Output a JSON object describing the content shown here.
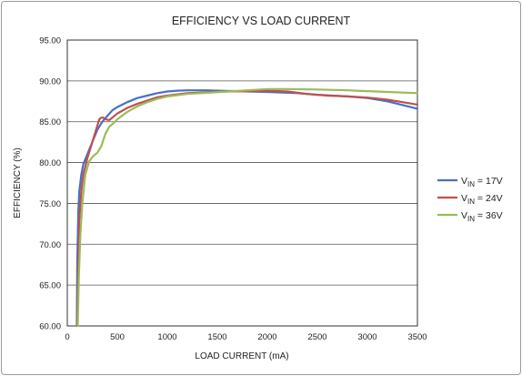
{
  "chart_data": {
    "type": "line",
    "title": "EFFICIENCY VS LOAD CURRENT",
    "xlabel": "LOAD CURRENT (mA)",
    "ylabel": "EFFICIENCY (%)",
    "xlim": [
      0,
      3500
    ],
    "ylim": [
      60,
      95
    ],
    "x_ticks": [
      0,
      500,
      1000,
      1500,
      2000,
      2500,
      3000,
      3500
    ],
    "x_tick_labels": [
      "0",
      "500",
      "1000",
      "1500",
      "2000",
      "2500",
      "3000",
      "3500"
    ],
    "y_ticks": [
      60,
      65,
      70,
      75,
      80,
      85,
      90,
      95
    ],
    "y_tick_labels": [
      "60.00",
      "65.00",
      "70.00",
      "75.00",
      "80.00",
      "85.00",
      "90.00",
      "95.00"
    ],
    "grid": "horizontal",
    "legend_position": "right",
    "series": [
      {
        "name_main": "V",
        "name_sub": "IN",
        "name_rest": " = 17V",
        "color": "#4472c4",
        "points": [
          [
            95,
            60
          ],
          [
            100,
            68
          ],
          [
            110,
            74
          ],
          [
            120,
            76.5
          ],
          [
            140,
            78.5
          ],
          [
            160,
            79.8
          ],
          [
            200,
            81
          ],
          [
            250,
            82.5
          ],
          [
            300,
            84
          ],
          [
            350,
            85
          ],
          [
            400,
            85.7
          ],
          [
            450,
            86.4
          ],
          [
            500,
            86.8
          ],
          [
            600,
            87.4
          ],
          [
            700,
            87.9
          ],
          [
            800,
            88.2
          ],
          [
            900,
            88.5
          ],
          [
            1000,
            88.7
          ],
          [
            1100,
            88.8
          ],
          [
            1200,
            88.85
          ],
          [
            1300,
            88.85
          ],
          [
            1400,
            88.85
          ],
          [
            1500,
            88.8
          ],
          [
            1700,
            88.75
          ],
          [
            2000,
            88.65
          ],
          [
            2300,
            88.5
          ],
          [
            2500,
            88.3
          ],
          [
            2800,
            88.1
          ],
          [
            3000,
            87.9
          ],
          [
            3200,
            87.5
          ],
          [
            3400,
            86.9
          ],
          [
            3500,
            86.6
          ]
        ]
      },
      {
        "name_main": "V",
        "name_sub": "IN",
        "name_rest": " = 24V",
        "color": "#c0504d",
        "points": [
          [
            100,
            60
          ],
          [
            110,
            68
          ],
          [
            120,
            73
          ],
          [
            140,
            76.5
          ],
          [
            160,
            78.5
          ],
          [
            200,
            80.5
          ],
          [
            250,
            82.5
          ],
          [
            300,
            84.5
          ],
          [
            320,
            85.3
          ],
          [
            340,
            85.5
          ],
          [
            360,
            85.5
          ],
          [
            380,
            85.3
          ],
          [
            420,
            85.2
          ],
          [
            460,
            85.6
          ],
          [
            500,
            86
          ],
          [
            600,
            86.7
          ],
          [
            700,
            87.2
          ],
          [
            800,
            87.6
          ],
          [
            900,
            88
          ],
          [
            1000,
            88.2
          ],
          [
            1200,
            88.5
          ],
          [
            1400,
            88.6
          ],
          [
            1600,
            88.7
          ],
          [
            1800,
            88.75
          ],
          [
            2000,
            88.8
          ],
          [
            2200,
            88.7
          ],
          [
            2400,
            88.4
          ],
          [
            2600,
            88.2
          ],
          [
            2800,
            88.1
          ],
          [
            3000,
            87.95
          ],
          [
            3200,
            87.7
          ],
          [
            3400,
            87.3
          ],
          [
            3500,
            87.1
          ]
        ]
      },
      {
        "name_main": "V",
        "name_sub": "IN",
        "name_rest": " = 36V",
        "color": "#9bbb59",
        "points": [
          [
            105,
            60
          ],
          [
            115,
            66
          ],
          [
            130,
            71
          ],
          [
            150,
            75
          ],
          [
            180,
            78.5
          ],
          [
            220,
            80.2
          ],
          [
            260,
            80.8
          ],
          [
            300,
            81.2
          ],
          [
            340,
            82
          ],
          [
            380,
            83.5
          ],
          [
            420,
            84.4
          ],
          [
            460,
            84.8
          ],
          [
            500,
            85.3
          ],
          [
            600,
            86.2
          ],
          [
            700,
            86.9
          ],
          [
            800,
            87.4
          ],
          [
            900,
            87.8
          ],
          [
            1000,
            88.1
          ],
          [
            1200,
            88.4
          ],
          [
            1400,
            88.55
          ],
          [
            1600,
            88.7
          ],
          [
            1800,
            88.85
          ],
          [
            2000,
            89
          ],
          [
            2200,
            89.0
          ],
          [
            2500,
            88.95
          ],
          [
            2800,
            88.85
          ],
          [
            3000,
            88.75
          ],
          [
            3200,
            88.65
          ],
          [
            3500,
            88.5
          ]
        ]
      }
    ]
  }
}
